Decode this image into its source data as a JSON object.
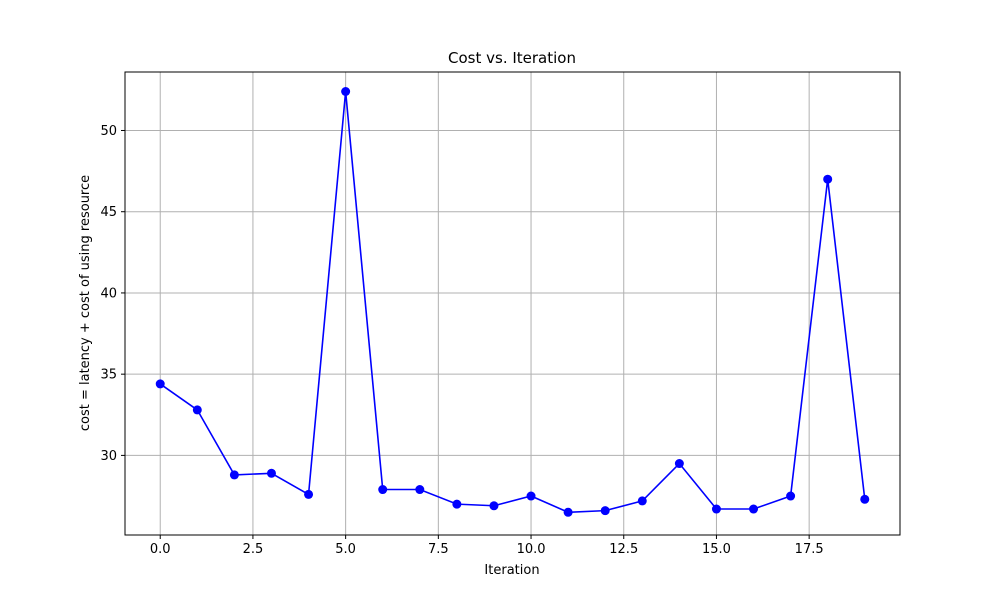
{
  "chart_data": {
    "type": "line",
    "title": "Cost vs. Iteration",
    "xlabel": "Iteration",
    "ylabel": "cost = latency + cost of using resource",
    "xlim": [
      -0.95,
      19.95
    ],
    "ylim": [
      25.1,
      53.6
    ],
    "xticks": [
      0.0,
      2.5,
      5.0,
      7.5,
      10.0,
      12.5,
      15.0,
      17.5
    ],
    "xtick_labels": [
      "0.0",
      "2.5",
      "5.0",
      "7.5",
      "10.0",
      "12.5",
      "15.0",
      "17.5"
    ],
    "yticks": [
      30,
      35,
      40,
      45,
      50
    ],
    "ytick_labels": [
      "30",
      "35",
      "40",
      "45",
      "50"
    ],
    "grid": true,
    "series": [
      {
        "color": "#0000ff",
        "marker": "circle",
        "x": [
          0,
          1,
          2,
          3,
          4,
          5,
          6,
          7,
          8,
          9,
          10,
          11,
          12,
          13,
          14,
          15,
          16,
          17,
          18,
          19
        ],
        "y": [
          34.4,
          32.8,
          28.8,
          28.9,
          27.6,
          52.4,
          27.9,
          27.9,
          27.0,
          26.9,
          27.5,
          26.5,
          26.6,
          27.2,
          29.5,
          26.7,
          26.7,
          27.5,
          47.0,
          27.3
        ]
      }
    ]
  }
}
